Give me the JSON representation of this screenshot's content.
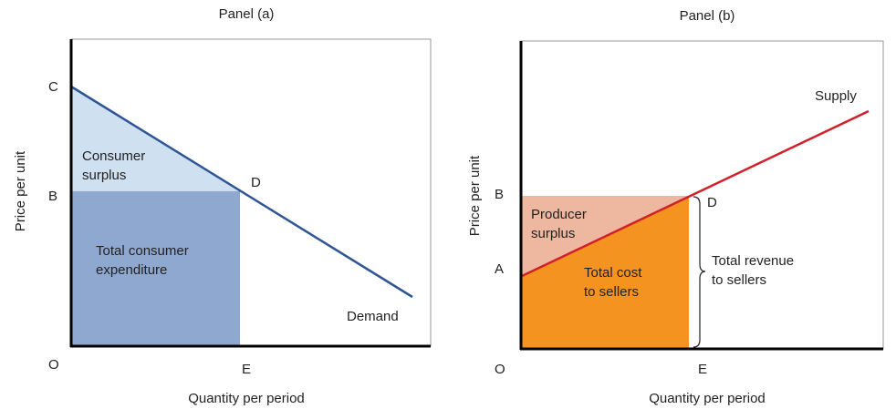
{
  "panels": [
    {
      "title": "Panel (a)",
      "y_axis_label": "Price per unit",
      "x_axis_label": "Quantity per period",
      "points": {
        "C": "C",
        "B": "B",
        "O": "O",
        "E": "E",
        "D": "D"
      },
      "areas": {
        "surplus": [
          "Consumer",
          "surplus"
        ],
        "expenditure": [
          "Total consumer",
          "expenditure"
        ]
      },
      "curve_label": "Demand"
    },
    {
      "title": "Panel (b)",
      "y_axis_label": "Price per unit",
      "x_axis_label": "Quantity per period",
      "points": {
        "B": "B",
        "A": "A",
        "O": "O",
        "E": "E",
        "D": "D"
      },
      "areas": {
        "surplus": [
          "Producer",
          "surplus"
        ],
        "cost": [
          "Total cost",
          "to sellers"
        ],
        "revenue": [
          "Total revenue",
          "to sellers"
        ]
      },
      "curve_label": "Supply"
    }
  ]
}
